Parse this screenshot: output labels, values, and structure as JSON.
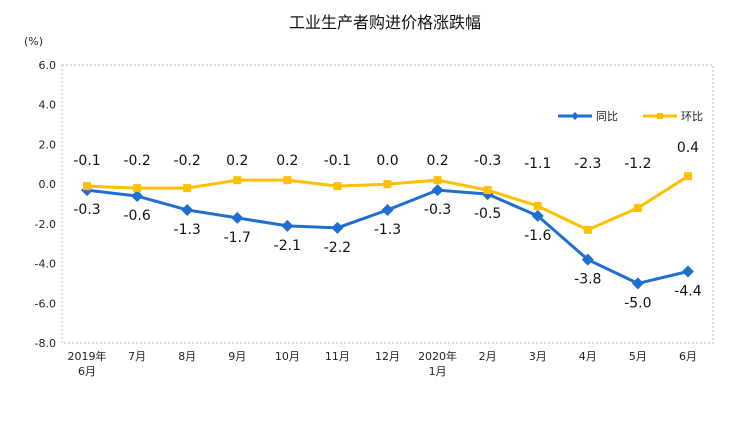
{
  "chart_data": {
    "type": "line",
    "title": "工业生产者购进价格涨跌幅",
    "ylabel": "(%)",
    "xlabel": "",
    "ylim": [
      -8.0,
      6.0
    ],
    "yticks": [
      "6.0",
      "4.0",
      "2.0",
      "0.0",
      "-2.0",
      "-4.0",
      "-6.0",
      "-8.0"
    ],
    "ytick_values": [
      6,
      4,
      2,
      0,
      -2,
      -4,
      -6,
      -8
    ],
    "categories": [
      [
        "2019年",
        "6月"
      ],
      [
        "7月"
      ],
      [
        "8月"
      ],
      [
        "9月"
      ],
      [
        "10月"
      ],
      [
        "11月"
      ],
      [
        "12月"
      ],
      [
        "2020年",
        "1月"
      ],
      [
        "2月"
      ],
      [
        "3月"
      ],
      [
        "4月"
      ],
      [
        "5月"
      ],
      [
        "6月"
      ]
    ],
    "grid": false,
    "legend_position": "top-right",
    "series": [
      {
        "name": "同比",
        "color": "#1F6FD0",
        "marker": "diamond",
        "values": [
          -0.3,
          -0.6,
          -1.3,
          -1.7,
          -2.1,
          -2.2,
          -1.3,
          -0.3,
          -0.5,
          -1.6,
          -3.8,
          -5.0,
          -4.4
        ],
        "labels": [
          "-0.3",
          "-0.6",
          "-1.3",
          "-1.7",
          "-2.1",
          "-2.2",
          "-1.3",
          "-0.3",
          "-0.5",
          "-1.6",
          "-3.8",
          "-5.0",
          "-4.4"
        ]
      },
      {
        "name": "环比",
        "color": "#FFC000",
        "marker": "square",
        "values": [
          -0.1,
          -0.2,
          -0.2,
          0.2,
          0.2,
          -0.1,
          0.0,
          0.2,
          -0.3,
          -1.1,
          -2.3,
          -1.2,
          0.4
        ],
        "labels": [
          "-0.1",
          "-0.2",
          "-0.2",
          "0.2",
          "0.2",
          "-0.1",
          "0.0",
          "0.2",
          "-0.3",
          "-1.1",
          "-2.3",
          "-1.2",
          "0.4"
        ]
      }
    ]
  }
}
